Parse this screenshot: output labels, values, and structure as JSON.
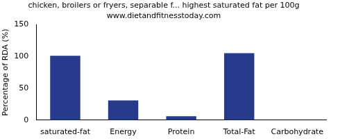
{
  "chart_data": {
    "type": "bar",
    "title": "chicken, broilers or fryers, separable f... highest saturated fat per 100g",
    "subtitle": "www.dietandfitnesstoday.com",
    "y_label": "Percentage of RDA (%)",
    "categories": [
      "saturated-fat",
      "Energy",
      "Protein",
      "Total-Fat",
      "Carbohydrate"
    ],
    "values": [
      101,
      31,
      6,
      105,
      0
    ],
    "color": "#263b8c",
    "ylim": [
      0,
      150
    ],
    "yticks": [
      0,
      50,
      100,
      150
    ],
    "grid": false
  }
}
